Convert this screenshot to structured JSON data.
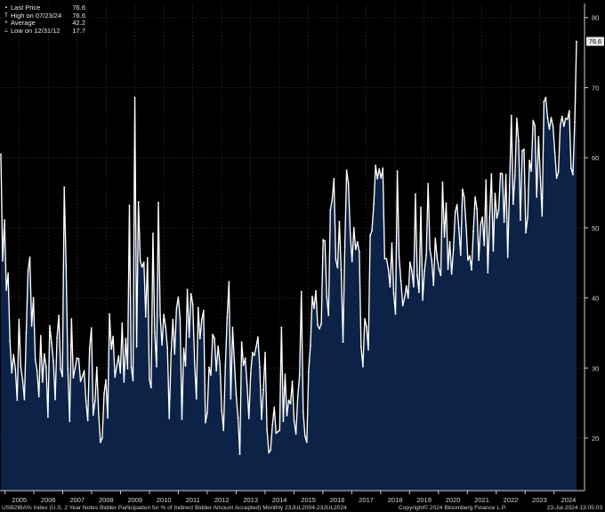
{
  "legend": [
    {
      "marker": "▪",
      "label": "Last Price",
      "value": "76.6"
    },
    {
      "marker": "T",
      "label": "High on 07/23/24",
      "value": "76.6"
    },
    {
      "marker": "+",
      "label": "Average",
      "value": "42.2"
    },
    {
      "marker": "⊥",
      "label": "Low on 12/31/12",
      "value": "17.7"
    }
  ],
  "footer": {
    "left": "USB2IBA% Index (U.S. 2 Year Notes Bidder Participation for % of Indirect Bidder Amount Accepted)  Monthly 23JUL2004-23JUL2024",
    "copyright": "Copyright© 2024 Bloomberg Finance L.P.",
    "timestamp": "23-Jul-2024 13:05:03"
  },
  "last_price_label": "76.6",
  "colors": {
    "background": "#000000",
    "area_fill": "#0c2347",
    "line": "#ffffff",
    "grid": "#3a3a3a",
    "axis_text": "#d8d8d8"
  },
  "chart_data": {
    "type": "area",
    "x_start": "2004-08",
    "x_end": "2024-07",
    "x_ticks": [
      "2005",
      "2006",
      "2007",
      "2008",
      "2009",
      "2010",
      "2011",
      "2012",
      "2013",
      "2014",
      "2015",
      "2016",
      "2017",
      "2018",
      "2019",
      "2020",
      "2021",
      "2022",
      "2023",
      "2024"
    ],
    "y_ticks": [
      20,
      30,
      40,
      50,
      60,
      70,
      80
    ],
    "ylim": [
      12.5,
      82
    ],
    "grid": true,
    "values": [
      60.5,
      45.3,
      51.1,
      41.1,
      43.5,
      33.9,
      29.3,
      31.9,
      29.9,
      25.4,
      36.9,
      30.2,
      28.3,
      25.5,
      35.0,
      43.9,
      45.8,
      36.0,
      40.0,
      31.2,
      29.6,
      25.9,
      34.6,
      28.0,
      32.0,
      30.2,
      23.0,
      36.0,
      33.6,
      31.0,
      25.5,
      34.3,
      37.5,
      29.8,
      28.8,
      55.8,
      44.8,
      29.9,
      22.4,
      37.0,
      28.6,
      30.0,
      31.4,
      31.3,
      28.1,
      28.8,
      29.6,
      25.3,
      22.5,
      32.8,
      35.7,
      23.3,
      25.3,
      30.1,
      23.5,
      19.4,
      20.0,
      26.3,
      28.3,
      22.9,
      37.7,
      32.7,
      34.5,
      28.7,
      30.3,
      31.7,
      29.3,
      36.4,
      28.0,
      34.2,
      29.9,
      53.2,
      30.1,
      28.2,
      68.6,
      33.0,
      53.7,
      45.3,
      44.4,
      45.1,
      37.3,
      45.7,
      28.4,
      27.2,
      49.2,
      35.0,
      30.2,
      53.6,
      37.5,
      33.3,
      37.6,
      35.9,
      32.9,
      22.8,
      31.9,
      36.9,
      32.0,
      38.5,
      40.1,
      37.1,
      22.7,
      32.8,
      30.3,
      41.2,
      34.4,
      40.6,
      39.1,
      30.9,
      25.6,
      38.6,
      34.2,
      36.9,
      38.2,
      22.2,
      23.6,
      30.1,
      29.0,
      34.8,
      34.2,
      29.6,
      33.1,
      30.6,
      24.0,
      21.1,
      30.3,
      37.2,
      42.3,
      25.6,
      35.8,
      30.8,
      26.1,
      22.9,
      17.7,
      33.7,
      30.4,
      31.4,
      27.6,
      22.8,
      29.2,
      32.2,
      31.8,
      33.0,
      34.4,
      30.1,
      22.7,
      26.9,
      32.2,
      21.3,
      17.9,
      18.3,
      21.9,
      24.4,
      20.7,
      20.9,
      21.1,
      35.8,
      22.4,
      29.1,
      23.2,
      25.4,
      24.9,
      28.1,
      22.4,
      20.6,
      25.9,
      29.0,
      40.9,
      23.7,
      20.3,
      19.4,
      29.5,
      33.2,
      40.2,
      38.5,
      41.0,
      36.1,
      35.6,
      36.3,
      48.3,
      48.1,
      40.2,
      37.5,
      52.5,
      54.0,
      57.0,
      45.5,
      44.3,
      50.9,
      44.0,
      33.7,
      47.3,
      58.2,
      56.3,
      49.2,
      45.2,
      50.0,
      46.9,
      48.0,
      46.6,
      33.0,
      30.2,
      37.0,
      35.9,
      32.6,
      48.9,
      49.6,
      53.4,
      58.9,
      57.0,
      58.4,
      57.1,
      58.5,
      45.6,
      45.6,
      44.2,
      41.6,
      47.8,
      40.6,
      37.7,
      58.1,
      45.8,
      42.4,
      38.9,
      40.0,
      41.7,
      40.0,
      45.1,
      43.9,
      41.6,
      54.8,
      43.2,
      40.8,
      52.9,
      39.7,
      43.9,
      46.1,
      56.3,
      47.0,
      45.4,
      41.8,
      48.5,
      45.7,
      44.1,
      43.2,
      56.5,
      48.7,
      53.5,
      44.1,
      48.0,
      43.4,
      46.9,
      52.3,
      53.3,
      49.9,
      46.1,
      55.5,
      54.3,
      50.3,
      45.4,
      46.0,
      44.0,
      49.5,
      54.4,
      52.7,
      45.4,
      50.5,
      51.5,
      47.5,
      56.8,
      43.6,
      51.5,
      57.7,
      46.7,
      54.9,
      51.4,
      52.5,
      57.8,
      57.7,
      50.8,
      57.6,
      45.8,
      56.0,
      66.0,
      53.4,
      57.4,
      65.6,
      62.4,
      51.1,
      61.0,
      61.2,
      49.3,
      51.5,
      59.6,
      58.1,
      65.3,
      64.6,
      54.4,
      63.0,
      57.3,
      51.7,
      68.0,
      68.6,
      65.7,
      64.1,
      65.7,
      64.5,
      60.8,
      57.1,
      58.0,
      64.6,
      65.9,
      64.5,
      65.6,
      65.5,
      66.7,
      58.5,
      57.6,
      65.1,
      76.6
    ]
  }
}
